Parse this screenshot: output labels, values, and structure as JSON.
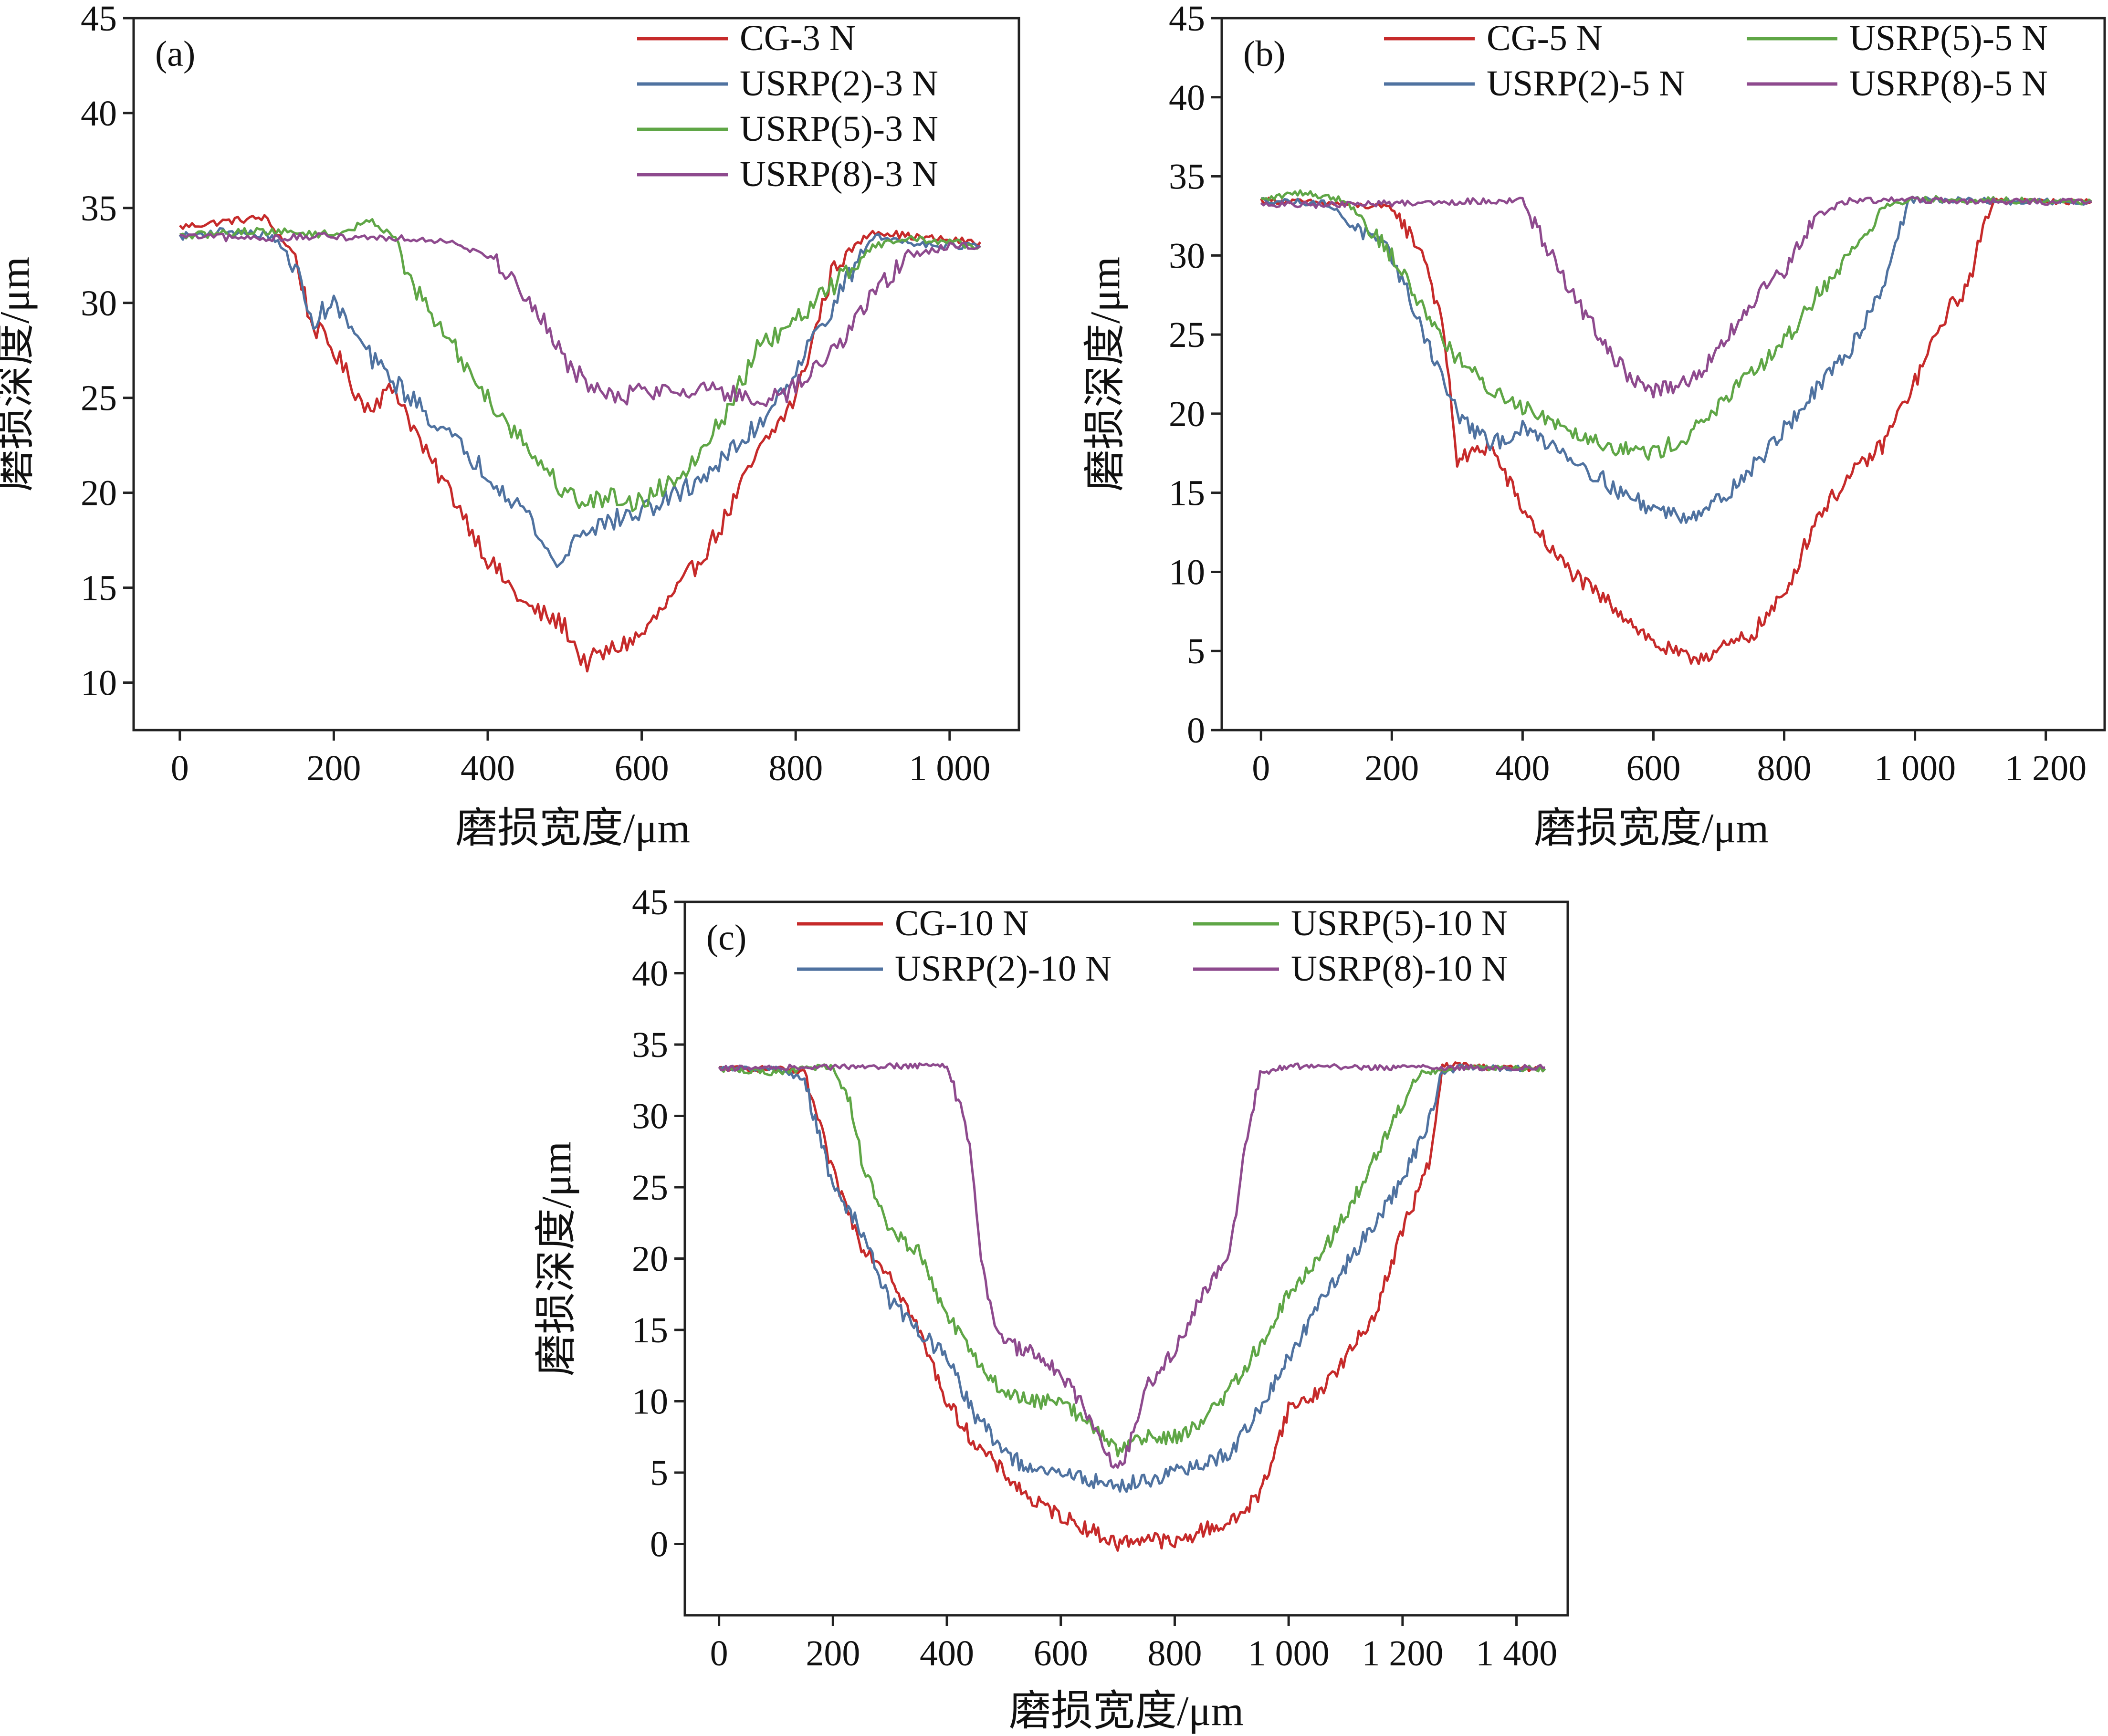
{
  "figure": {
    "colors": {
      "CG": "#c62a2a",
      "USRP2": "#4f72a0",
      "USRP5": "#5fa646",
      "USRP8": "#8e4a8e",
      "axis": "#222222"
    }
  },
  "chart_data": [
    {
      "type": "line",
      "panel_label": "(a)",
      "xlabel": "磨损宽度/μm",
      "ylabel": "磨损深度/μm",
      "xlim": [
        -60,
        1090
      ],
      "ylim": [
        7.5,
        45
      ],
      "xticks": [
        0,
        200,
        400,
        600,
        800,
        1000
      ],
      "xtick_labels": [
        "0",
        "200",
        "400",
        "600",
        "800",
        "1 000"
      ],
      "yticks": [
        10,
        15,
        20,
        25,
        30,
        35,
        40,
        45
      ],
      "ytick_labels": [
        "10",
        "15",
        "20",
        "25",
        "30",
        "35",
        "40",
        "45"
      ],
      "legend_columns": 1,
      "series": [
        {
          "name": "CG-3 N",
          "color_key": "CG",
          "x": [
            0,
            60,
            110,
            150,
            170,
            200,
            240,
            280,
            320,
            360,
            400,
            450,
            500,
            525,
            550,
            600,
            650,
            700,
            750,
            800,
            850,
            900,
            950,
            1000,
            1040
          ],
          "y": [
            34,
            34.3,
            34.5,
            32.5,
            29,
            27.5,
            24.5,
            25.5,
            22,
            19.5,
            16.5,
            14,
            13,
            11,
            11.5,
            12.5,
            15,
            18,
            22,
            25,
            32,
            33.8,
            33.5,
            33.3,
            33.2
          ]
        },
        {
          "name": "USRP(2)-3 N",
          "color_key": "USRP2",
          "x": [
            0,
            60,
            120,
            150,
            170,
            200,
            250,
            300,
            350,
            400,
            450,
            490,
            520,
            560,
            600,
            650,
            700,
            750,
            800,
            850,
            900,
            950,
            1000,
            1040
          ],
          "y": [
            33.5,
            33.8,
            33.5,
            32,
            29,
            30,
            27,
            25,
            23,
            21,
            19,
            16,
            18,
            18.5,
            19,
            20,
            21.5,
            23.5,
            26.5,
            30,
            33.5,
            33.2,
            33,
            33
          ]
        },
        {
          "name": "USRP(5)-3 N",
          "color_key": "USRP5",
          "x": [
            0,
            100,
            200,
            250,
            280,
            300,
            350,
            400,
            450,
            500,
            530,
            560,
            600,
            650,
            700,
            750,
            800,
            850,
            900,
            950,
            1000,
            1040
          ],
          "y": [
            33.5,
            33.8,
            33.6,
            34.3,
            33.5,
            31,
            28,
            25,
            22.5,
            20,
            19.5,
            19.8,
            19.5,
            21,
            23.5,
            27.5,
            29,
            31,
            33,
            33.4,
            33.2,
            33
          ]
        },
        {
          "name": "USRP(8)-3 N",
          "color_key": "USRP8",
          "x": [
            0,
            100,
            200,
            300,
            350,
            400,
            450,
            500,
            550,
            600,
            650,
            700,
            750,
            800,
            850,
            900,
            950,
            1000,
            1040
          ],
          "y": [
            33.5,
            33.4,
            33.5,
            33.4,
            33.3,
            32.5,
            30.5,
            27,
            25,
            25.3,
            25.5,
            25.5,
            24.5,
            25.5,
            27.5,
            30.5,
            32.5,
            33,
            33
          ]
        }
      ]
    },
    {
      "type": "line",
      "panel_label": "(b)",
      "xlabel": "磨损宽度/μm",
      "ylabel": "磨损深度/μm",
      "xlim": [
        -60,
        1290
      ],
      "ylim": [
        0,
        45
      ],
      "xticks": [
        0,
        200,
        400,
        600,
        800,
        1000,
        1200
      ],
      "xtick_labels": [
        "0",
        "200",
        "400",
        "600",
        "800",
        "1 000",
        "1 200"
      ],
      "yticks": [
        0,
        5,
        10,
        15,
        20,
        25,
        30,
        35,
        40,
        45
      ],
      "ytick_labels": [
        "0",
        "5",
        "10",
        "15",
        "20",
        "25",
        "30",
        "35",
        "40",
        "45"
      ],
      "legend_columns": 2,
      "series": [
        {
          "name": "CG-5 N",
          "color_key": "CG",
          "x": [
            0,
            100,
            200,
            250,
            280,
            300,
            350,
            400,
            450,
            500,
            550,
            600,
            650,
            700,
            750,
            800,
            850,
            900,
            950,
            1000,
            1050,
            1080,
            1100,
            1120,
            1200,
            1270
          ],
          "y": [
            33.5,
            33.3,
            33,
            30,
            25,
            17,
            18,
            14,
            11,
            9,
            7.5,
            5.5,
            4.5,
            5,
            6,
            8.5,
            13.5,
            16,
            18,
            22,
            26.5,
            28,
            31,
            33.5,
            33.4,
            33.4
          ]
        },
        {
          "name": "USRP(2)-5 N",
          "color_key": "USRP2",
          "x": [
            0,
            100,
            200,
            250,
            300,
            350,
            400,
            450,
            500,
            550,
            600,
            650,
            700,
            750,
            800,
            850,
            900,
            950,
            990,
            1050,
            1150,
            1270
          ],
          "y": [
            33.5,
            33.3,
            30,
            25,
            20,
            18,
            19,
            18,
            16.5,
            15,
            14,
            13.5,
            14.5,
            16.5,
            19,
            21.5,
            24,
            28,
            33.5,
            33.5,
            33.4,
            33.4
          ]
        },
        {
          "name": "USRP(5)-5 N",
          "color_key": "USRP5",
          "x": [
            0,
            60,
            130,
            200,
            250,
            300,
            350,
            400,
            450,
            500,
            550,
            600,
            650,
            700,
            750,
            800,
            850,
            900,
            950,
            1000,
            1100,
            1270
          ],
          "y": [
            33.5,
            34,
            33.5,
            30,
            26.5,
            23.5,
            21.5,
            20.5,
            19.5,
            18.5,
            17.8,
            17.5,
            18.5,
            20.5,
            22.5,
            24.5,
            27.5,
            30,
            33,
            33.6,
            33.5,
            33.4
          ]
        },
        {
          "name": "USRP(8)-5 N",
          "color_key": "USRP8",
          "x": [
            0,
            100,
            200,
            300,
            400,
            430,
            470,
            500,
            530,
            560,
            600,
            630,
            670,
            700,
            750,
            800,
            850,
            900,
            1000,
            1100,
            1270
          ],
          "y": [
            33.2,
            33.2,
            33.3,
            33.4,
            33.5,
            31,
            28,
            26,
            24,
            22.5,
            21.5,
            21.5,
            22.5,
            24,
            27,
            29,
            32.5,
            33.5,
            33.5,
            33.4,
            33.4
          ]
        }
      ]
    },
    {
      "type": "line",
      "panel_label": "(c)",
      "xlabel": "磨损宽度/μm",
      "ylabel": "磨损深度/μm",
      "xlim": [
        -60,
        1490
      ],
      "ylim": [
        -5,
        45
      ],
      "xticks": [
        0,
        200,
        400,
        600,
        800,
        1000,
        1200,
        1400
      ],
      "xtick_labels": [
        "0",
        "200",
        "400",
        "600",
        "800",
        "1 000",
        "1 200",
        "1 400"
      ],
      "yticks": [
        0,
        5,
        10,
        15,
        20,
        25,
        30,
        35,
        40,
        45
      ],
      "ytick_labels": [
        "0",
        "5",
        "10",
        "15",
        "20",
        "25",
        "30",
        "35",
        "40",
        "45"
      ],
      "legend_columns": 2,
      "series": [
        {
          "name": "CG-10 N",
          "color_key": "CG",
          "x": [
            0,
            100,
            150,
            200,
            250,
            300,
            350,
            400,
            450,
            500,
            550,
            600,
            650,
            700,
            750,
            800,
            850,
            900,
            950,
            1000,
            1050,
            1100,
            1150,
            1200,
            1250,
            1270,
            1300,
            1350,
            1450
          ],
          "y": [
            33.3,
            33.3,
            33,
            26,
            21,
            19,
            15,
            10,
            7,
            5,
            3,
            2,
            1,
            0,
            0.5,
            0,
            1,
            1.5,
            3.5,
            9.5,
            10.5,
            13,
            16,
            22,
            27,
            33.5,
            33.6,
            33.4,
            33.3
          ]
        },
        {
          "name": "USRP(2)-10 N",
          "color_key": "USRP2",
          "x": [
            0,
            100,
            150,
            180,
            200,
            250,
            300,
            350,
            400,
            450,
            500,
            550,
            600,
            650,
            700,
            750,
            800,
            850,
            900,
            950,
            1000,
            1050,
            1100,
            1150,
            1200,
            1250,
            1270,
            1300,
            1450
          ],
          "y": [
            33.3,
            33.3,
            32.5,
            28,
            25,
            22,
            17,
            15,
            13,
            9,
            6.5,
            5,
            5,
            4.5,
            4,
            4.5,
            5,
            5.5,
            6.5,
            9.5,
            13,
            16.5,
            19.5,
            22.5,
            25.5,
            30,
            33,
            33.4,
            33.3
          ]
        },
        {
          "name": "USRP(5)-10 N",
          "color_key": "USRP5",
          "x": [
            0,
            100,
            150,
            200,
            230,
            250,
            300,
            350,
            400,
            450,
            500,
            550,
            600,
            650,
            700,
            750,
            800,
            850,
            900,
            950,
            1000,
            1050,
            1100,
            1150,
            1200,
            1230,
            1300,
            1450
          ],
          "y": [
            33.3,
            33,
            33.3,
            33.5,
            31,
            27,
            22,
            20.5,
            16,
            13,
            10.5,
            10,
            10,
            8.5,
            6.5,
            7.5,
            7.5,
            8.5,
            11,
            14,
            17.5,
            20,
            23,
            27,
            31,
            33,
            33.4,
            33.3
          ]
        },
        {
          "name": "USRP(8)-10 N",
          "color_key": "USRP8",
          "x": [
            0,
            100,
            200,
            300,
            400,
            420,
            440,
            460,
            480,
            500,
            550,
            600,
            650,
            700,
            720,
            750,
            800,
            850,
            900,
            920,
            950,
            1000,
            1100,
            1200,
            1300,
            1450
          ],
          "y": [
            33.3,
            33.4,
            33.4,
            33.5,
            33.5,
            31,
            28,
            20,
            16,
            14,
            13.5,
            12,
            9,
            5,
            7,
            11,
            13.5,
            17.5,
            21,
            27,
            33,
            33.5,
            33.4,
            33.4,
            33.4,
            33.4
          ]
        }
      ]
    }
  ]
}
